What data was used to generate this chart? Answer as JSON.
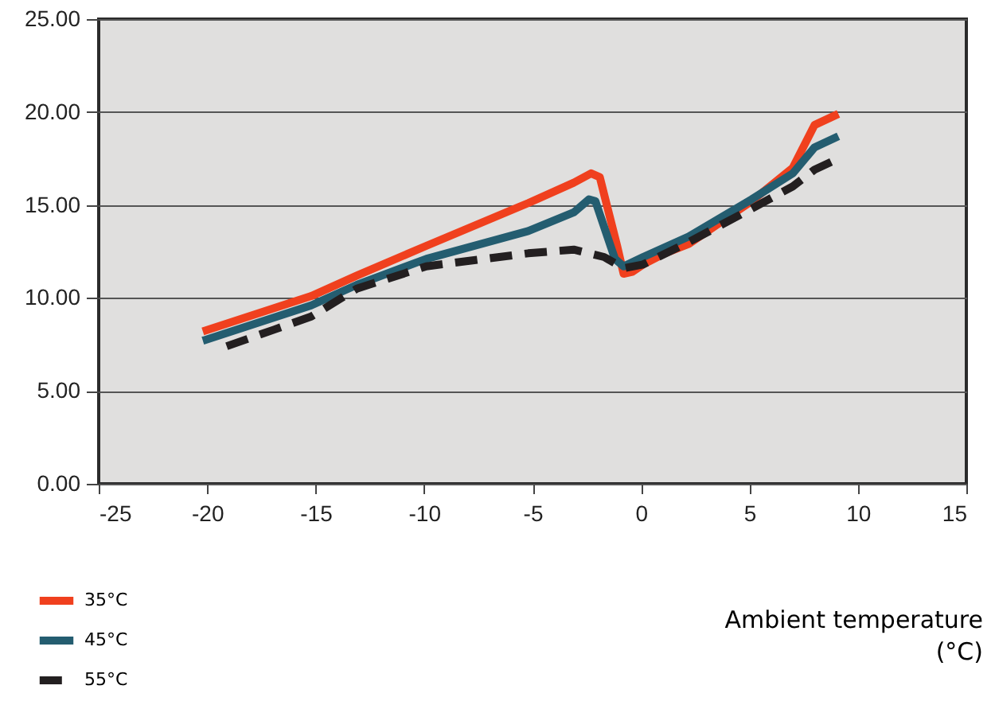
{
  "chart_data": {
    "type": "line",
    "xlabel": "Ambient temperature (°C)",
    "xlim": [
      -25,
      15
    ],
    "xticks": [
      -25,
      -20,
      -15,
      -10,
      -5,
      0,
      5,
      10,
      15
    ],
    "ylim": [
      0,
      25
    ],
    "yticks": [
      {
        "value": 0,
        "label": "0.00"
      },
      {
        "value": 5,
        "label": "5.00"
      },
      {
        "value": 10,
        "label": "10.00"
      },
      {
        "value": 15,
        "label": "15.00"
      },
      {
        "value": 20,
        "label": "20.00"
      },
      {
        "value": 25,
        "label": "25.00"
      }
    ],
    "grid": "y",
    "legend": "bottom left",
    "marker": "none",
    "series": [
      {
        "name": "35°C",
        "color": "#f0401e",
        "line_style": "solid",
        "x": [
          -20.2,
          -15.2,
          -13.1,
          -9.9,
          -5.2,
          -3.1,
          -2.3,
          -1.9,
          -1.1,
          -0.8,
          -0.4,
          0.1,
          1.1,
          2.2,
          5.1,
          7.0,
          8.0,
          9.1
        ],
        "values": [
          8.2,
          10.1,
          11.2,
          12.8,
          15.1,
          16.2,
          16.7,
          16.5,
          12.8,
          11.3,
          11.4,
          11.8,
          12.4,
          12.9,
          15.2,
          17.0,
          19.3,
          19.9
        ]
      },
      {
        "name": "45°C",
        "color": "#245d70",
        "line_style": "solid",
        "x": [
          -20.2,
          -15.2,
          -13.1,
          -9.9,
          -5.2,
          -3.1,
          -2.4,
          -2.1,
          -1.2,
          -0.8,
          0.1,
          2.2,
          5.1,
          7.0,
          8.0,
          9.1
        ],
        "values": [
          7.7,
          9.6,
          10.7,
          12.1,
          13.6,
          14.6,
          15.3,
          15.2,
          12.1,
          11.7,
          12.2,
          13.3,
          15.3,
          16.7,
          18.1,
          18.7
        ]
      },
      {
        "name": "55°C",
        "color": "#231f20",
        "line_style": "dashed",
        "x": [
          -19.1,
          -16.9,
          -15.2,
          -13.1,
          -9.9,
          -5.2,
          -3.1,
          -1.7,
          -0.8,
          0.1,
          2.2,
          5.1,
          7.0,
          8.0,
          9.1
        ],
        "values": [
          7.4,
          8.3,
          9.0,
          10.5,
          11.7,
          12.4,
          12.6,
          12.2,
          11.6,
          11.8,
          13.0,
          14.8,
          16.0,
          16.9,
          17.5
        ]
      }
    ]
  }
}
